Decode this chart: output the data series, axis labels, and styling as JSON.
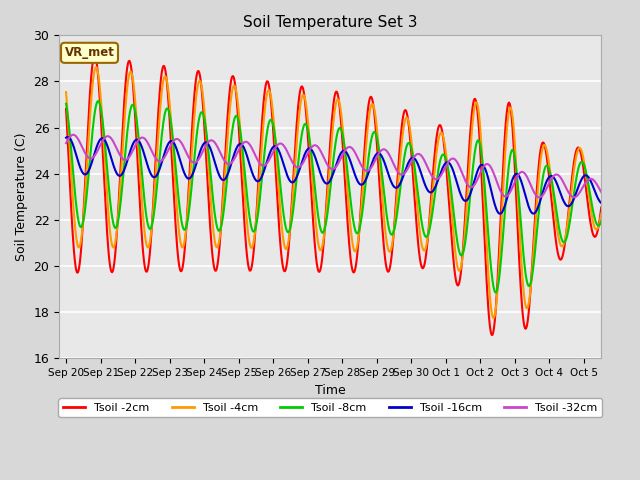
{
  "title": "Soil Temperature Set 3",
  "xlabel": "Time",
  "ylabel": "Soil Temperature (C)",
  "ylim": [
    16,
    30
  ],
  "series_labels": [
    "Tsoil -2cm",
    "Tsoil -4cm",
    "Tsoil -8cm",
    "Tsoil -16cm",
    "Tsoil -32cm"
  ],
  "series_colors": [
    "#ff0000",
    "#ff9900",
    "#00cc00",
    "#0000cc",
    "#cc44cc"
  ],
  "line_width": 1.5,
  "bg_color": "#d8d8d8",
  "plot_bg": "#e8e8e8",
  "legend_label": "VR_met",
  "xtick_labels": [
    "Sep 20",
    "Sep 21",
    "Sep 22",
    "Sep 23",
    "Sep 24",
    "Sep 25",
    "Sep 26",
    "Sep 27",
    "Sep 28",
    "Sep 29",
    "Sep 30",
    "Oct 1",
    "Oct 2",
    "Oct 3",
    "Oct 4",
    "Oct 5"
  ],
  "ytick_labels": [
    16,
    18,
    20,
    22,
    24,
    26,
    28,
    30
  ],
  "figsize": [
    6.4,
    4.8
  ],
  "dpi": 100
}
